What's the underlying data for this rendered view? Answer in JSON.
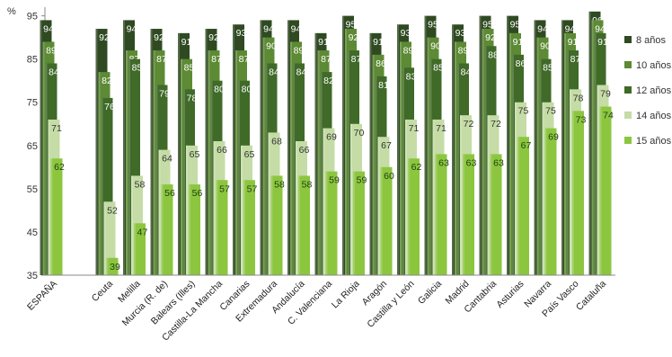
{
  "chart_data": {
    "type": "bar",
    "unit": "%",
    "ylim": [
      35,
      97
    ],
    "yticks": [
      35,
      45,
      55,
      65,
      75,
      85,
      95
    ],
    "grid": false,
    "legend_position": "right",
    "categories": [
      "ESPAÑA",
      "Ceuta",
      "Melilla",
      "Murcia (R. de)",
      "Balears (Illes)",
      "Castilla-La Mancha",
      "Canarias",
      "Extremadura",
      "Andalucía",
      "C. Valenciana",
      "La Rioja",
      "Aragón",
      "Castilla y León",
      "Galicia",
      "Madrid",
      "Cantabria",
      "Asturias",
      "Navarra",
      "País Vasco",
      "Cataluña"
    ],
    "series": [
      {
        "name": "8 años",
        "color": "#2f4a22",
        "values": [
          94,
          92,
          94,
          92,
          91,
          92,
          93,
          94,
          94,
          91,
          95,
          91,
          93,
          95,
          93,
          95,
          95,
          94,
          94,
          96
        ]
      },
      {
        "name": "10 años",
        "color": "#5d8a34",
        "values": [
          89,
          82,
          87,
          87,
          85,
          87,
          87,
          90,
          89,
          87,
          92,
          86,
          89,
          90,
          89,
          92,
          91,
          90,
          91,
          94
        ]
      },
      {
        "name": "12 años",
        "color": "#3f6a28",
        "values": [
          84,
          76,
          85,
          79,
          78,
          80,
          80,
          84,
          84,
          82,
          87,
          81,
          83,
          85,
          84,
          88,
          86,
          85,
          87,
          91
        ]
      },
      {
        "name": "14 años",
        "color": "#c5dca6",
        "values": [
          71,
          52,
          58,
          64,
          65,
          66,
          65,
          68,
          66,
          69,
          70,
          67,
          71,
          71,
          72,
          72,
          75,
          75,
          78,
          79
        ]
      },
      {
        "name": "15 años",
        "color": "#8cc63f",
        "values": [
          62,
          39,
          47,
          56,
          56,
          57,
          57,
          58,
          58,
          59,
          59,
          60,
          62,
          63,
          63,
          63,
          67,
          69,
          73,
          74
        ]
      }
    ]
  }
}
